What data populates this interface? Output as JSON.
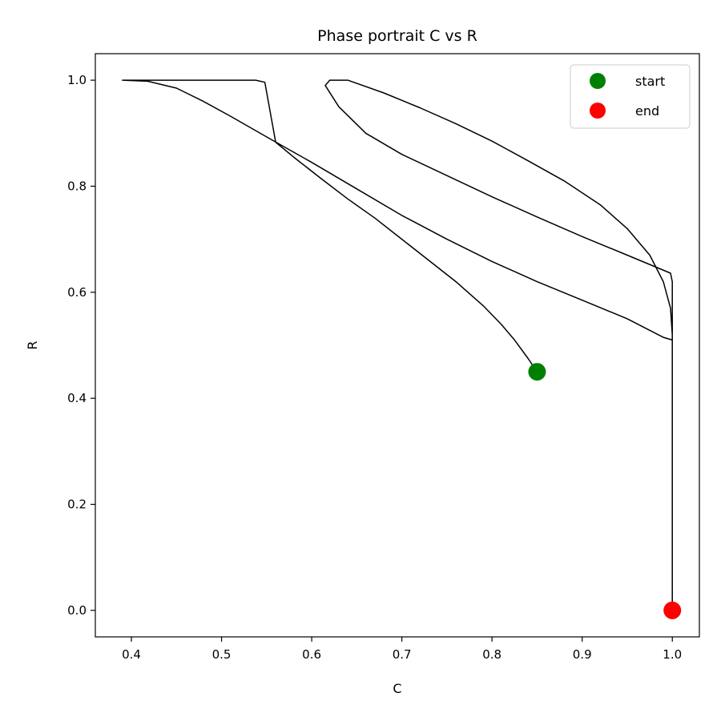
{
  "chart_data": {
    "type": "line",
    "title": "Phase portrait C vs R",
    "xlabel": "C",
    "ylabel": "R",
    "xlim": [
      0.36,
      1.03
    ],
    "ylim": [
      -0.05,
      1.05
    ],
    "xticks": [
      0.4,
      0.5,
      0.6,
      0.7,
      0.8,
      0.9,
      1.0
    ],
    "yticks": [
      0.0,
      0.2,
      0.4,
      0.6,
      0.8,
      1.0
    ],
    "xtick_labels": [
      "0.4",
      "0.5",
      "0.6",
      "0.7",
      "0.8",
      "0.9",
      "1.0"
    ],
    "ytick_labels": [
      "0.0",
      "0.2",
      "0.4",
      "0.6",
      "0.8",
      "1.0"
    ],
    "grid": false,
    "legend": {
      "placement": "top-right",
      "entries": [
        {
          "label": "start",
          "color": "#008000"
        },
        {
          "label": "end",
          "color": "#ff0000"
        }
      ]
    },
    "series": [
      {
        "color": "#000000",
        "points": [
          [
            0.85,
            0.45
          ],
          [
            0.84,
            0.475
          ],
          [
            0.825,
            0.51
          ],
          [
            0.81,
            0.54
          ],
          [
            0.79,
            0.575
          ],
          [
            0.76,
            0.62
          ],
          [
            0.73,
            0.66
          ],
          [
            0.7,
            0.7
          ],
          [
            0.67,
            0.74
          ],
          [
            0.64,
            0.776
          ],
          [
            0.61,
            0.815
          ],
          [
            0.58,
            0.855
          ],
          [
            0.56,
            0.883
          ],
          [
            0.548,
            0.996
          ],
          [
            0.538,
            1.0
          ],
          [
            0.48,
            1.0
          ],
          [
            0.42,
            1.0
          ],
          [
            0.39,
            1.0
          ],
          [
            0.418,
            0.998
          ],
          [
            0.45,
            0.985
          ],
          [
            0.48,
            0.96
          ],
          [
            0.51,
            0.932
          ],
          [
            0.55,
            0.893
          ],
          [
            0.6,
            0.845
          ],
          [
            0.65,
            0.795
          ],
          [
            0.7,
            0.745
          ],
          [
            0.75,
            0.7
          ],
          [
            0.8,
            0.658
          ],
          [
            0.85,
            0.62
          ],
          [
            0.9,
            0.585
          ],
          [
            0.95,
            0.55
          ],
          [
            0.99,
            0.515
          ],
          [
            1.0,
            0.51
          ],
          [
            1.0,
            0.62
          ],
          [
            0.998,
            0.636
          ],
          [
            0.95,
            0.67
          ],
          [
            0.9,
            0.705
          ],
          [
            0.85,
            0.742
          ],
          [
            0.8,
            0.78
          ],
          [
            0.75,
            0.82
          ],
          [
            0.7,
            0.86
          ],
          [
            0.66,
            0.9
          ],
          [
            0.63,
            0.95
          ],
          [
            0.615,
            0.99
          ],
          [
            0.62,
            1.0
          ],
          [
            0.64,
            1.0
          ],
          [
            0.68,
            0.976
          ],
          [
            0.72,
            0.948
          ],
          [
            0.76,
            0.918
          ],
          [
            0.8,
            0.885
          ],
          [
            0.84,
            0.848
          ],
          [
            0.88,
            0.81
          ],
          [
            0.92,
            0.765
          ],
          [
            0.95,
            0.72
          ],
          [
            0.975,
            0.67
          ],
          [
            0.99,
            0.62
          ],
          [
            0.998,
            0.57
          ],
          [
            1.0,
            0.52
          ],
          [
            1.0,
            0.0
          ]
        ]
      }
    ],
    "markers": [
      {
        "label": "start",
        "x": 0.85,
        "y": 0.45,
        "color": "#008000"
      },
      {
        "label": "end",
        "x": 1.0,
        "y": 0.0,
        "color": "#ff0000"
      }
    ]
  }
}
